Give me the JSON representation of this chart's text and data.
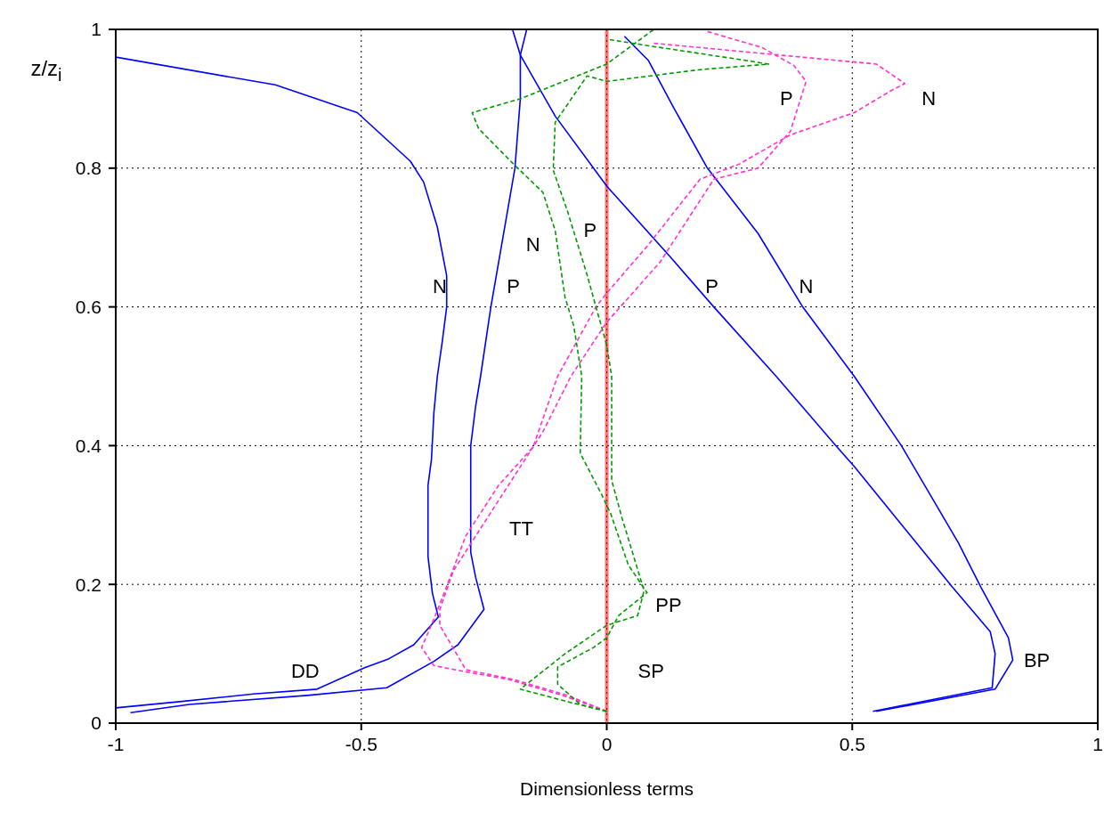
{
  "chart_data": {
    "type": "line",
    "xlabel": "Dimensionless terms",
    "ylabel": "z/z$_{i}$",
    "xlim": [
      -1,
      1
    ],
    "ylim": [
      0,
      1
    ],
    "xticks": [
      -1,
      -0.5,
      0,
      0.5,
      1
    ],
    "yticks": [
      0,
      0.2,
      0.4,
      0.6,
      0.8,
      1
    ],
    "grid": true,
    "series": [
      {
        "color": "#0000ff",
        "line_style": "solid",
        "x": [
          -1.0,
          -0.87,
          -0.72,
          -0.59,
          -0.493,
          -0.446,
          -0.393,
          -0.343,
          -0.355,
          -0.364,
          -0.364,
          -0.357,
          -0.352,
          -0.345,
          -0.335,
          -0.326,
          -0.326,
          -0.345,
          -0.373,
          -0.4,
          -0.508,
          -0.675,
          -1.0
        ],
        "values": [
          0.022,
          0.031,
          0.042,
          0.049,
          0.08,
          0.092,
          0.113,
          0.153,
          0.187,
          0.24,
          0.343,
          0.38,
          0.448,
          0.5,
          0.55,
          0.6,
          0.645,
          0.715,
          0.78,
          0.81,
          0.88,
          0.92,
          0.96
        ]
      },
      {
        "color": "#0000ff",
        "line_style": "solid",
        "x": [
          -0.97,
          -0.85,
          -0.61,
          -0.448,
          -0.352,
          -0.303,
          -0.25,
          -0.267,
          -0.277,
          -0.277,
          -0.267,
          -0.257,
          -0.236,
          -0.209,
          -0.187,
          -0.176,
          -0.176,
          -0.163
        ],
        "values": [
          0.015,
          0.027,
          0.04,
          0.051,
          0.089,
          0.113,
          0.164,
          0.21,
          0.246,
          0.4,
          0.457,
          0.5,
          0.6,
          0.71,
          0.8,
          0.9,
          0.963,
          1.0
        ]
      },
      {
        "color": "#0000ff",
        "line_style": "solid",
        "x": [
          0.542,
          0.785,
          0.791,
          0.781,
          0.704,
          0.504,
          0.464,
          0.345,
          0.218,
          0.127,
          0.0,
          -0.027,
          -0.105,
          -0.176,
          -0.192
        ],
        "values": [
          0.017,
          0.051,
          0.1,
          0.132,
          0.196,
          0.37,
          0.402,
          0.5,
          0.6,
          0.674,
          0.774,
          0.8,
          0.875,
          0.963,
          1.0
        ]
      },
      {
        "color": "#0000ff",
        "line_style": "solid",
        "x": [
          0.549,
          0.791,
          0.827,
          0.818,
          0.762,
          0.716,
          0.6,
          0.504,
          0.399,
          0.308,
          0.205,
          0.134,
          0.085,
          0.036
        ],
        "values": [
          0.017,
          0.049,
          0.091,
          0.123,
          0.196,
          0.26,
          0.4,
          0.5,
          0.6,
          0.706,
          0.8,
          0.89,
          0.955,
          0.99
        ]
      },
      {
        "color": "#ff33cc",
        "line_style": "dashed",
        "x": [
          0.0,
          -0.09,
          -0.2,
          -0.287,
          -0.352,
          -0.377,
          -0.352,
          -0.33,
          -0.287,
          -0.22,
          -0.15,
          -0.1,
          -0.022,
          0.0,
          0.083,
          0.19,
          0.27,
          0.374,
          0.504,
          0.58,
          0.607,
          0.549,
          0.323,
          0.096
        ],
        "values": [
          0.017,
          0.04,
          0.063,
          0.074,
          0.083,
          0.109,
          0.15,
          0.19,
          0.27,
          0.343,
          0.398,
          0.5,
          0.6,
          0.62,
          0.688,
          0.784,
          0.806,
          0.848,
          0.88,
          0.912,
          0.922,
          0.95,
          0.965,
          0.98
        ]
      },
      {
        "color": "#ff33cc",
        "line_style": "dashed",
        "x": [
          0.0,
          -0.08,
          -0.19,
          -0.287,
          -0.34,
          -0.34,
          -0.312,
          -0.254,
          -0.13,
          -0.073,
          0.0,
          0.109,
          0.218,
          0.308,
          0.374,
          0.406,
          0.381,
          0.316,
          0.257,
          0.205
        ],
        "values": [
          0.017,
          0.04,
          0.063,
          0.077,
          0.141,
          0.164,
          0.22,
          0.284,
          0.42,
          0.5,
          0.578,
          0.665,
          0.784,
          0.8,
          0.853,
          0.925,
          0.948,
          0.974,
          0.986,
          0.997
        ]
      },
      {
        "color": "#009900",
        "line_style": "dashed",
        "x": [
          0.0,
          -0.054,
          -0.1,
          -0.1,
          -0.027,
          0.0,
          0.024,
          0.082,
          0.044,
          0.008,
          -0.01,
          -0.054,
          -0.051,
          -0.067,
          -0.085,
          -0.105,
          -0.13,
          -0.19,
          -0.261,
          -0.274,
          -0.176,
          0.0,
          0.096
        ],
        "values": [
          0.017,
          0.027,
          0.056,
          0.081,
          0.109,
          0.123,
          0.155,
          0.188,
          0.228,
          0.302,
          0.329,
          0.389,
          0.5,
          0.572,
          0.614,
          0.71,
          0.765,
          0.806,
          0.857,
          0.88,
          0.9,
          0.95,
          1.0
        ]
      },
      {
        "color": "#009900",
        "line_style": "dashed",
        "x": [
          0.0,
          -0.08,
          -0.176,
          -0.085,
          0.0,
          0.063,
          0.076,
          0.031,
          0.01,
          0.01,
          0.0,
          -0.022,
          -0.04,
          -0.08,
          -0.109,
          -0.105,
          -0.04,
          0.0,
          0.19,
          0.33,
          0.295,
          0.08,
          0.0
        ],
        "values": [
          0.017,
          0.031,
          0.049,
          0.1,
          0.141,
          0.155,
          0.191,
          0.296,
          0.35,
          0.5,
          0.545,
          0.6,
          0.646,
          0.738,
          0.797,
          0.866,
          0.933,
          0.925,
          0.942,
          0.95,
          0.954,
          0.977,
          0.986
        ]
      }
    ],
    "ref_lines": [
      {
        "axis": "x",
        "value": 0,
        "color": "#ff0000"
      }
    ],
    "annotations": [
      "N",
      "P",
      "N",
      "P",
      "P",
      "N",
      "P",
      "N",
      "TT",
      "PP",
      "SP",
      "DD",
      "BP"
    ]
  }
}
